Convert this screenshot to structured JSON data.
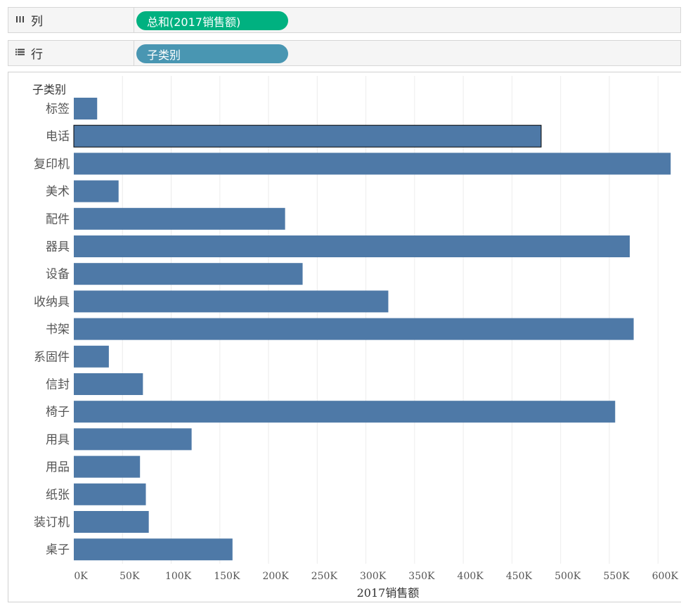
{
  "shelves": {
    "columns": {
      "label": "列",
      "icon": "columns-icon",
      "pill": "总和(2017销售额)",
      "pill_color": "#00b180"
    },
    "rows": {
      "label": "行",
      "icon": "rows-icon",
      "pill": "子类别",
      "pill_color": "#4996b2"
    }
  },
  "chart_data": {
    "type": "bar",
    "orientation": "horizontal",
    "ylabel": "子类别",
    "xlabel": "2017销售额",
    "categories": [
      "标签",
      "电话",
      "复印机",
      "美术",
      "配件",
      "器具",
      "设备",
      "收纳具",
      "书架",
      "系固件",
      "信封",
      "椅子",
      "用具",
      "用品",
      "纸张",
      "装订机",
      "桌子"
    ],
    "values": [
      24000,
      480000,
      613000,
      46000,
      217000,
      571000,
      235000,
      323000,
      575000,
      36000,
      71000,
      556000,
      121000,
      68000,
      74000,
      77000,
      163000
    ],
    "xlim": [
      0,
      615000
    ],
    "ticks": [
      {
        "v": 0,
        "label": "0K"
      },
      {
        "v": 50000,
        "label": "50K"
      },
      {
        "v": 100000,
        "label": "100K"
      },
      {
        "v": 150000,
        "label": "150K"
      },
      {
        "v": 200000,
        "label": "200K"
      },
      {
        "v": 250000,
        "label": "250K"
      },
      {
        "v": 300000,
        "label": "300K"
      },
      {
        "v": 350000,
        "label": "350K"
      },
      {
        "v": 400000,
        "label": "400K"
      },
      {
        "v": 450000,
        "label": "450K"
      },
      {
        "v": 500000,
        "label": "500K"
      },
      {
        "v": 550000,
        "label": "550K"
      },
      {
        "v": 600000,
        "label": "600K"
      }
    ],
    "bar_color": "#4e79a7",
    "highlighted": "电话",
    "gridlines": true
  }
}
